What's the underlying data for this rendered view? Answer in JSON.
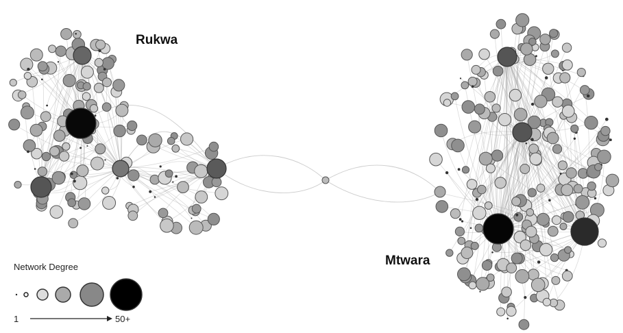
{
  "labels": {
    "rukwa": "Rukwa",
    "mtwara": "Mtwara"
  },
  "legend": {
    "title": "Network Degree",
    "min": "1",
    "max": "50+"
  }
}
